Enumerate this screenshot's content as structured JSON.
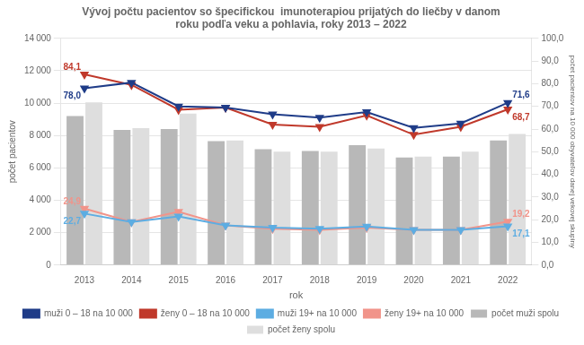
{
  "chart_data": {
    "type": "bar",
    "title": "Vývoj počtu pacientov so špecifickou  imunoterapiou prijatých do liečby v danom\nroku podľa veku a pohlavia, roky 2013 – 2022",
    "xlabel": "rok",
    "ylabel": "počet pacientov",
    "y2label": "počet pacientov na 10 000 obyvateľov danej vekovej skupiny",
    "categories": [
      "2013",
      "2014",
      "2015",
      "2016",
      "2017",
      "2018",
      "2019",
      "2020",
      "2021",
      "2022"
    ],
    "series": [
      {
        "name": "počet muži spolu",
        "color": "#b8b8b8",
        "values": [
          9200,
          8350,
          8400,
          7650,
          7150,
          7050,
          7400,
          6650,
          6700,
          7700
        ]
      },
      {
        "name": "počet ženy spolu",
        "color": "#dedede",
        "values": [
          10050,
          8450,
          9350,
          7700,
          7000,
          7000,
          7200,
          6700,
          7000,
          8100
        ]
      },
      {
        "name": "muži 0 – 18 na 10 000",
        "type": "line",
        "axis": "y2",
        "color": "#1f3c88",
        "marker": "triangle_down",
        "values": [
          78.0,
          80.5,
          70.0,
          69.5,
          66.5,
          65.0,
          67.5,
          60.5,
          62.5,
          71.6
        ]
      },
      {
        "name": "ženy 0 – 18 na 10 000",
        "type": "line",
        "axis": "y2",
        "color": "#c0392b",
        "marker": "triangle_down",
        "values": [
          84.1,
          79.5,
          68.5,
          69.5,
          62.0,
          61.0,
          66.0,
          57.5,
          61.0,
          68.7
        ]
      },
      {
        "name": "muži 19+ na 10 000",
        "type": "line",
        "axis": "y2",
        "color": "#5dade2",
        "marker": "triangle_down",
        "values": [
          22.7,
          19.0,
          21.5,
          17.5,
          16.5,
          16.0,
          17.0,
          15.5,
          15.5,
          17.1
        ]
      },
      {
        "name": "ženy 19+ na 10 000",
        "type": "line",
        "axis": "y2",
        "color": "#f1948a",
        "marker": "triangle_down",
        "values": [
          24.9,
          19.0,
          23.5,
          17.5,
          16.0,
          15.5,
          16.5,
          15.5,
          15.5,
          19.2
        ]
      }
    ],
    "ylim": [
      0,
      14000
    ],
    "yticks": [
      0,
      {
        "value": 2000,
        "label": "2 000"
      },
      {
        "value": 4000,
        "label": "4 000"
      },
      {
        "value": 6000,
        "label": "6 000"
      },
      {
        "value": 8000,
        "label": "8 000"
      },
      {
        "value": 10000,
        "label": "10 000"
      },
      {
        "value": 12000,
        "label": "12 000"
      },
      {
        "value": 14000,
        "label": "14 000"
      }
    ],
    "y2lim": [
      0.0,
      100.0
    ],
    "y2ticks": [
      {
        "value": 0,
        "label": "0,0"
      },
      {
        "value": 10,
        "label": "10,0"
      },
      {
        "value": 20,
        "label": "20,0"
      },
      {
        "value": 30,
        "label": "30,0"
      },
      {
        "value": 40,
        "label": "40,0"
      },
      {
        "value": 50,
        "label": "50,0"
      },
      {
        "value": 60,
        "label": "60,0"
      },
      {
        "value": 70,
        "label": "70,0"
      },
      {
        "value": 80,
        "label": "80,0"
      },
      {
        "value": 90,
        "label": "90,0"
      },
      {
        "value": 100,
        "label": "100,0"
      }
    ],
    "grid": true,
    "legend": "bottom",
    "annotations": [
      {
        "text": "84,1",
        "x": "2013",
        "y": 84.1,
        "axis": "y2",
        "color": "#c0392b"
      },
      {
        "text": "78,0",
        "x": "2013",
        "y": 78.0,
        "axis": "y2",
        "color": "#1f3c88"
      },
      {
        "text": "24,9",
        "x": "2013",
        "y": 24.9,
        "axis": "y2",
        "color": "#f1948a"
      },
      {
        "text": "22,7",
        "x": "2013",
        "y": 22.7,
        "axis": "y2",
        "color": "#5dade2"
      },
      {
        "text": "71,6",
        "x": "2022",
        "y": 71.6,
        "axis": "y2",
        "color": "#1f3c88"
      },
      {
        "text": "68,7",
        "x": "2022",
        "y": 68.7,
        "axis": "y2",
        "color": "#c0392b"
      },
      {
        "text": "17,1",
        "x": "2022",
        "y": 17.1,
        "axis": "y2",
        "color": "#5dade2"
      },
      {
        "text": "19,2",
        "x": "2022",
        "y": 19.2,
        "axis": "y2",
        "color": "#f1948a"
      }
    ]
  }
}
